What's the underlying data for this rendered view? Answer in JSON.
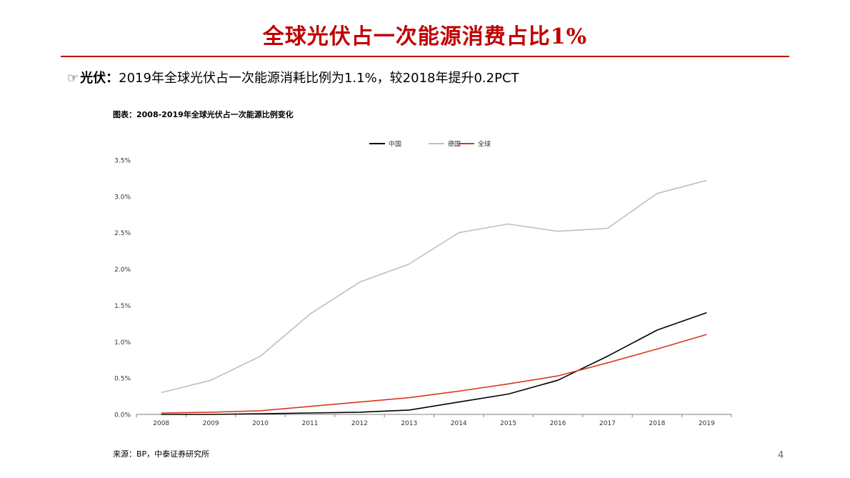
{
  "slide": {
    "title": "全球光伏占一次能源消费占比1%",
    "bullet_icon": "pointing-hand-icon",
    "bullet_hand": "☞",
    "bullet_lead": "光伏：",
    "bullet_text": "2019年全球光伏占一次能源消耗比例为1.1%，较2018年提升0.2PCT",
    "chart_caption": "图表：2008-2019年全球光伏占一次能源比例变化",
    "source": "来源：BP，中泰证券研究所",
    "page_number": "4",
    "accent_color": "#c00000"
  },
  "chart_data": {
    "type": "line",
    "title": "",
    "xlabel": "",
    "ylabel": "",
    "x": [
      "2008",
      "2009",
      "2010",
      "2011",
      "2012",
      "2013",
      "2014",
      "2015",
      "2016",
      "2017",
      "2018",
      "2019"
    ],
    "ylim": [
      0,
      3.5
    ],
    "yticks": [
      0,
      0.5,
      1.0,
      1.5,
      2.0,
      2.5,
      3.0,
      3.5
    ],
    "ytick_labels": [
      "0.0%",
      "0.5%",
      "1.0%",
      "1.5%",
      "2.0%",
      "2.5%",
      "3.0%",
      "3.5%"
    ],
    "grid": false,
    "legend_position": "top-center",
    "series": [
      {
        "name": "中国",
        "color": "#000000",
        "values": [
          0.0,
          0.0,
          0.01,
          0.02,
          0.03,
          0.06,
          0.17,
          0.28,
          0.47,
          0.8,
          1.16,
          1.4
        ]
      },
      {
        "name": "德国",
        "color": "#bfbfbf",
        "values": [
          0.3,
          0.47,
          0.8,
          1.38,
          1.82,
          2.07,
          2.5,
          2.62,
          2.52,
          2.56,
          3.04,
          3.22
        ]
      },
      {
        "name": "全球",
        "color": "#d9381e",
        "values": [
          0.02,
          0.03,
          0.05,
          0.11,
          0.17,
          0.23,
          0.32,
          0.42,
          0.53,
          0.71,
          0.9,
          1.1
        ]
      }
    ]
  }
}
